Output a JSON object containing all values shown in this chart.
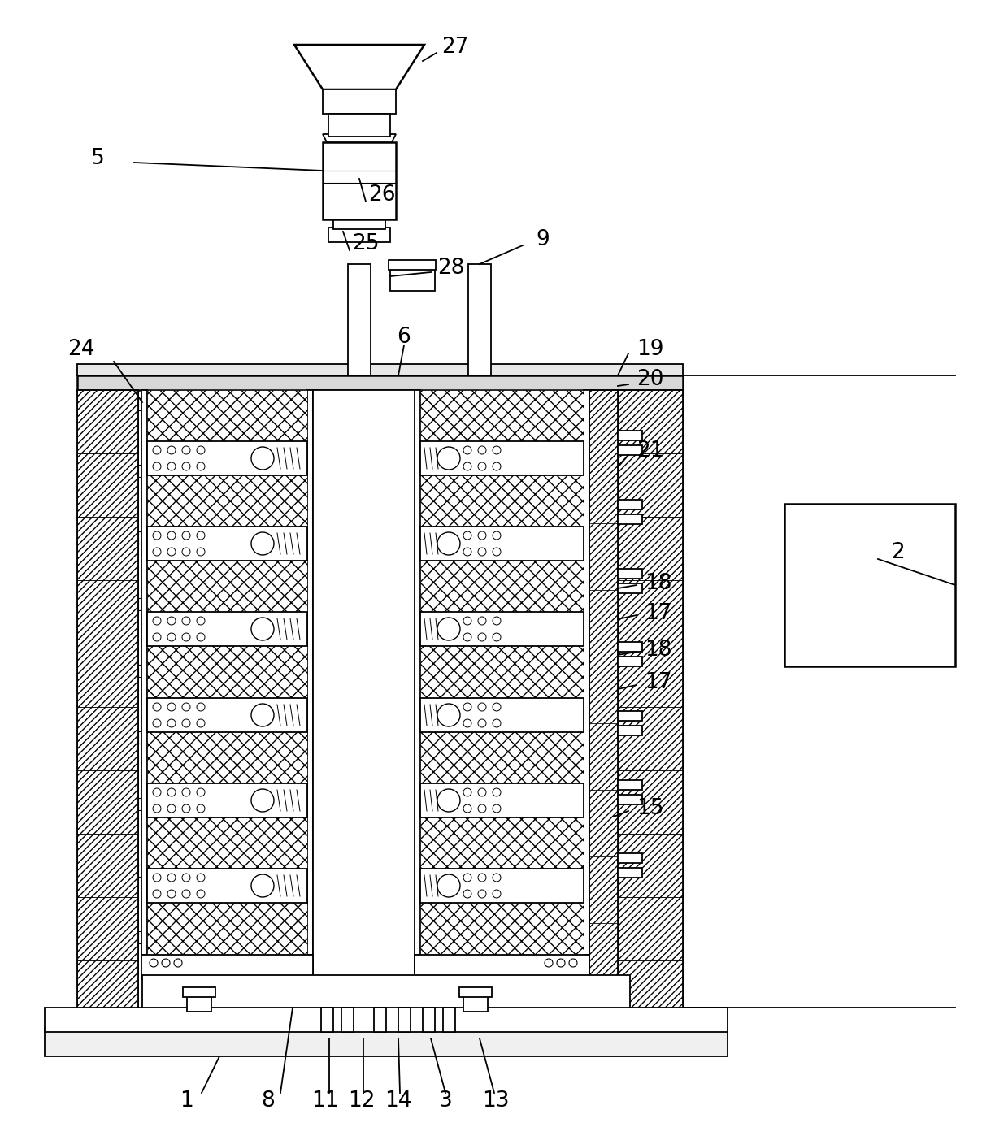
{
  "bg_color": "#ffffff",
  "figsize": [
    12.4,
    13.98
  ],
  "dpi": 100,
  "lw": 1.3,
  "fs": 19
}
